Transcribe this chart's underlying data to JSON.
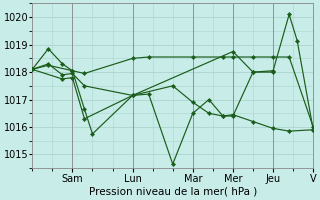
{
  "bg_color": "#c8ece8",
  "grid_color": "#b0d8d2",
  "line_color": "#1a5c1a",
  "marker_color": "#1a5c1a",
  "xlabel": "Pression niveau de la mer( hPa )",
  "ylim": [
    1014.5,
    1020.5
  ],
  "yticks": [
    1015,
    1016,
    1017,
    1018,
    1019,
    1020
  ],
  "xlim": [
    0,
    14
  ],
  "day_ticks": [
    2,
    5,
    8,
    10,
    12,
    14
  ],
  "day_labels": [
    "Sam",
    "Lun",
    "Mar",
    "Mer",
    "Jeu",
    "V"
  ],
  "lines": [
    {
      "x": [
        0.0,
        0.8,
        1.5,
        2.0,
        2.6,
        3.0,
        5.0,
        5.8,
        7.0,
        8.0,
        8.8,
        9.5,
        10.0,
        11.0,
        12.0,
        12.8,
        13.2,
        14.0
      ],
      "y": [
        1018.1,
        1018.85,
        1018.3,
        1018.05,
        1016.65,
        1015.75,
        1017.15,
        1017.2,
        1014.65,
        1016.5,
        1017.0,
        1016.4,
        1016.4,
        1018.0,
        1018.05,
        1020.1,
        1019.15,
        1015.9
      ]
    },
    {
      "x": [
        0.0,
        0.8,
        1.5,
        2.0,
        2.6,
        5.0,
        7.0,
        8.0,
        8.8,
        9.5,
        10.0,
        11.0,
        12.0,
        12.8,
        14.0
      ],
      "y": [
        1018.1,
        1018.3,
        1017.9,
        1017.95,
        1017.5,
        1017.15,
        1017.5,
        1016.9,
        1016.5,
        1016.4,
        1016.45,
        1016.2,
        1015.95,
        1015.85,
        1015.9
      ]
    },
    {
      "x": [
        0.0,
        0.8,
        2.0,
        2.6,
        5.0,
        5.8,
        8.0,
        9.5,
        10.0,
        11.0,
        12.0,
        12.8,
        14.0
      ],
      "y": [
        1018.1,
        1018.25,
        1018.05,
        1017.95,
        1018.5,
        1018.55,
        1018.55,
        1018.55,
        1018.55,
        1018.55,
        1018.55,
        1018.55,
        1016.0
      ]
    },
    {
      "x": [
        0.0,
        1.5,
        2.0,
        2.6,
        5.0,
        10.0,
        11.0,
        12.0
      ],
      "y": [
        1018.1,
        1017.75,
        1017.8,
        1016.3,
        1017.15,
        1018.75,
        1018.0,
        1018.0
      ]
    }
  ]
}
